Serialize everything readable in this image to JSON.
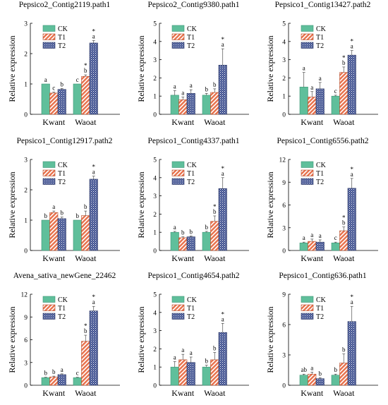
{
  "legend": [
    "CK",
    "T1",
    "T2"
  ],
  "colors": {
    "CK": "#5fbf9b",
    "T1": "#e8704a",
    "T2": "#3d4f8f"
  },
  "ylabel": "Relative expression",
  "chart_data": [
    {
      "type": "bar",
      "title": "Pepsico2_Contig2119.path1",
      "categories": [
        "Kwant",
        "Waoat"
      ],
      "ylim": [
        0,
        3
      ],
      "yticks": [
        0,
        1,
        2,
        3
      ],
      "ylabel": "Relative expression",
      "series": [
        {
          "name": "CK",
          "values": [
            1.0,
            1.0
          ],
          "errors": [
            0,
            0
          ],
          "labels": [
            "a",
            "c"
          ],
          "stars": [
            false,
            false
          ]
        },
        {
          "name": "T1",
          "values": [
            0.7,
            1.25
          ],
          "errors": [
            0.03,
            0.05
          ],
          "labels": [
            "c",
            "b"
          ],
          "stars": [
            false,
            true
          ]
        },
        {
          "name": "T2",
          "values": [
            0.82,
            2.35
          ],
          "errors": [
            0.03,
            0.08
          ],
          "labels": [
            "b",
            "a"
          ],
          "stars": [
            false,
            true
          ]
        }
      ]
    },
    {
      "type": "bar",
      "title": "Pepsico2_Contig9380.path1",
      "categories": [
        "Kwant",
        "Waoat"
      ],
      "ylim": [
        0,
        5
      ],
      "yticks": [
        0,
        1,
        2,
        3,
        4,
        5
      ],
      "ylabel": "Relative expression",
      "series": [
        {
          "name": "CK",
          "values": [
            1.05,
            1.05
          ],
          "errors": [
            0.25,
            0.1
          ],
          "labels": [
            "a",
            "b"
          ],
          "stars": [
            false,
            false
          ]
        },
        {
          "name": "T1",
          "values": [
            0.8,
            1.2
          ],
          "errors": [
            0.15,
            0.2
          ],
          "labels": [
            "a",
            "b"
          ],
          "stars": [
            false,
            false
          ]
        },
        {
          "name": "T2",
          "values": [
            1.15,
            2.7
          ],
          "errors": [
            0.2,
            0.9
          ],
          "labels": [
            "a",
            "a"
          ],
          "stars": [
            false,
            true
          ]
        }
      ]
    },
    {
      "type": "bar",
      "title": "Pepsico1_Contig13427.path2",
      "categories": [
        "Kwant",
        "Waoat"
      ],
      "ylim": [
        0,
        5
      ],
      "yticks": [
        0,
        1,
        2,
        3,
        4,
        5
      ],
      "ylabel": "Relative expression",
      "series": [
        {
          "name": "CK",
          "values": [
            1.5,
            1.0
          ],
          "errors": [
            0.8,
            0.05
          ],
          "labels": [
            "a",
            "c"
          ],
          "stars": [
            false,
            false
          ]
        },
        {
          "name": "T1",
          "values": [
            0.95,
            2.3
          ],
          "errors": [
            0.3,
            0.3
          ],
          "labels": [
            "a",
            "b"
          ],
          "stars": [
            false,
            true
          ]
        },
        {
          "name": "T2",
          "values": [
            1.4,
            3.25
          ],
          "errors": [
            0.35,
            0.25
          ],
          "labels": [
            "a",
            "a"
          ],
          "stars": [
            false,
            true
          ]
        }
      ]
    },
    {
      "type": "bar",
      "title": "Pepsico1_Contig12917.path2",
      "categories": [
        "Kwant",
        "Waoat"
      ],
      "ylim": [
        0,
        3
      ],
      "yticks": [
        0,
        1,
        2,
        3
      ],
      "ylabel": "Relative expression",
      "series": [
        {
          "name": "CK",
          "values": [
            1.0,
            1.0
          ],
          "errors": [
            0,
            0
          ],
          "labels": [
            "b",
            "b"
          ],
          "stars": [
            false,
            false
          ]
        },
        {
          "name": "T1",
          "values": [
            1.25,
            1.15
          ],
          "errors": [
            0.05,
            0.15
          ],
          "labels": [
            "a",
            "b"
          ],
          "stars": [
            false,
            false
          ]
        },
        {
          "name": "T2",
          "values": [
            1.05,
            2.35
          ],
          "errors": [
            0.05,
            0.1
          ],
          "labels": [
            "b",
            "a"
          ],
          "stars": [
            false,
            true
          ]
        }
      ]
    },
    {
      "type": "bar",
      "title": "Pepsico1_Contig4337.path1",
      "categories": [
        "Kwant",
        "Waoat"
      ],
      "ylim": [
        0,
        5
      ],
      "yticks": [
        0,
        1,
        2,
        3,
        4,
        5
      ],
      "ylabel": "Relative expression",
      "series": [
        {
          "name": "CK",
          "values": [
            1.0,
            1.0
          ],
          "errors": [
            0.05,
            0.05
          ],
          "labels": [
            "a",
            "b"
          ],
          "stars": [
            false,
            false
          ]
        },
        {
          "name": "T1",
          "values": [
            0.7,
            1.6
          ],
          "errors": [
            0.05,
            0.3
          ],
          "labels": [
            "b",
            "b"
          ],
          "stars": [
            false,
            true
          ]
        },
        {
          "name": "T2",
          "values": [
            0.75,
            3.4
          ],
          "errors": [
            0.05,
            0.6
          ],
          "labels": [
            "b",
            "a"
          ],
          "stars": [
            false,
            true
          ]
        }
      ]
    },
    {
      "type": "bar",
      "title": "Pepsico1_Contig6556.path2",
      "categories": [
        "Kwant",
        "Waoat"
      ],
      "ylim": [
        0,
        12
      ],
      "yticks": [
        0,
        3,
        6,
        9,
        12
      ],
      "ylabel": "Relative expression",
      "series": [
        {
          "name": "CK",
          "values": [
            1.0,
            1.0
          ],
          "errors": [
            0.1,
            0.1
          ],
          "labels": [
            "a",
            "c"
          ],
          "stars": [
            false,
            false
          ]
        },
        {
          "name": "T1",
          "values": [
            1.2,
            2.6
          ],
          "errors": [
            0.3,
            0.5
          ],
          "labels": [
            "a",
            "b"
          ],
          "stars": [
            false,
            true
          ]
        },
        {
          "name": "T2",
          "values": [
            1.1,
            8.2
          ],
          "errors": [
            0.3,
            1.3
          ],
          "labels": [
            "a",
            "a"
          ],
          "stars": [
            false,
            true
          ]
        }
      ]
    },
    {
      "type": "bar",
      "title": "Avena_sativa_newGene_22462",
      "categories": [
        "Kwant",
        "Waoat"
      ],
      "ylim": [
        0,
        12
      ],
      "yticks": [
        0,
        3,
        6,
        9,
        12
      ],
      "ylabel": "Relative expression",
      "series": [
        {
          "name": "CK",
          "values": [
            1.0,
            1.0
          ],
          "errors": [
            0.05,
            0.05
          ],
          "labels": [
            "b",
            "c"
          ],
          "stars": [
            false,
            false
          ]
        },
        {
          "name": "T1",
          "values": [
            1.1,
            5.8
          ],
          "errors": [
            0.1,
            0.8
          ],
          "labels": [
            "b",
            "b"
          ],
          "stars": [
            false,
            true
          ]
        },
        {
          "name": "T2",
          "values": [
            1.4,
            9.8
          ],
          "errors": [
            0.1,
            0.6
          ],
          "labels": [
            "a",
            "a"
          ],
          "stars": [
            false,
            true
          ]
        }
      ]
    },
    {
      "type": "bar",
      "title": "Pepsico1_Contig4654.path2",
      "categories": [
        "Kwant",
        "Waoat"
      ],
      "ylim": [
        0,
        5
      ],
      "yticks": [
        0,
        1,
        2,
        3,
        4,
        5
      ],
      "ylabel": "Relative expression",
      "series": [
        {
          "name": "CK",
          "values": [
            1.0,
            1.0
          ],
          "errors": [
            0.3,
            0.1
          ],
          "labels": [
            "a",
            "b"
          ],
          "stars": [
            false,
            false
          ]
        },
        {
          "name": "T1",
          "values": [
            1.4,
            1.4
          ],
          "errors": [
            0.3,
            0.4
          ],
          "labels": [
            "a",
            "b"
          ],
          "stars": [
            false,
            false
          ]
        },
        {
          "name": "T2",
          "values": [
            1.25,
            2.9
          ],
          "errors": [
            0.3,
            0.5
          ],
          "labels": [
            "a",
            "a"
          ],
          "stars": [
            false,
            true
          ]
        }
      ]
    },
    {
      "type": "bar",
      "title": "Pepsico1_Contig636.path1",
      "categories": [
        "Kwant",
        "Waoat"
      ],
      "ylim": [
        0,
        9
      ],
      "yticks": [
        0,
        3,
        6,
        9
      ],
      "ylabel": "Relative expression",
      "series": [
        {
          "name": "CK",
          "values": [
            1.0,
            1.0
          ],
          "errors": [
            0.1,
            0.1
          ],
          "labels": [
            "ab",
            "b"
          ],
          "stars": [
            false,
            false
          ]
        },
        {
          "name": "T1",
          "values": [
            1.1,
            2.2
          ],
          "errors": [
            0.2,
            0.9
          ],
          "labels": [
            "a",
            "b"
          ],
          "stars": [
            false,
            false
          ]
        },
        {
          "name": "T2",
          "values": [
            0.65,
            6.3
          ],
          "errors": [
            0.1,
            1.5
          ],
          "labels": [
            "b",
            "a"
          ],
          "stars": [
            false,
            true
          ]
        }
      ]
    }
  ]
}
